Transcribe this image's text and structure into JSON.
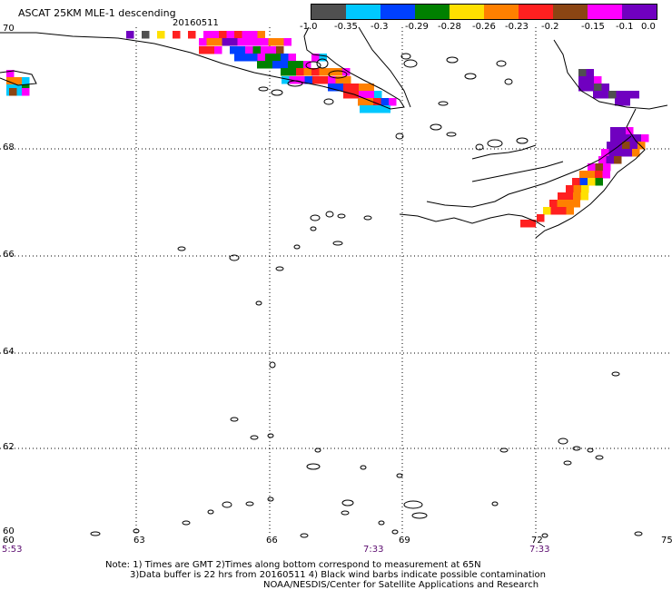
{
  "header": {
    "title": "ASCAT 25KM MLE-1 descending",
    "date": "20160511"
  },
  "colorbar": {
    "colors": [
      "#505050",
      "#00c8ff",
      "#0040ff",
      "#008000",
      "#ffe000",
      "#ff8000",
      "#ff2020",
      "#8b4513",
      "#ff00ff",
      "#7000c0"
    ],
    "labels": [
      "-1.0",
      "-0.35",
      "-0.3",
      "-0.29",
      "-0.28",
      "-0.26",
      "-0.23",
      "-0.2",
      "-0.15",
      "-0.1",
      "0.0"
    ]
  },
  "axes": {
    "y_labels": [
      "70",
      "68",
      "66",
      "64",
      "62",
      "60"
    ],
    "x_labels": [
      "60",
      "63",
      "66",
      "69",
      "72",
      "75"
    ],
    "times": [
      "5:53",
      "7:33",
      "7:33"
    ]
  },
  "notes": {
    "line1": "Note: 1) Times are GMT 2)Times along bottom correspond to measurement at 65N",
    "line2": "3)Data buffer is 22 hrs from 20160511 4) Black wind barbs indicate possible contamination",
    "line3": "NOAA/NESDIS/Center for Satellite Applications and Research"
  }
}
